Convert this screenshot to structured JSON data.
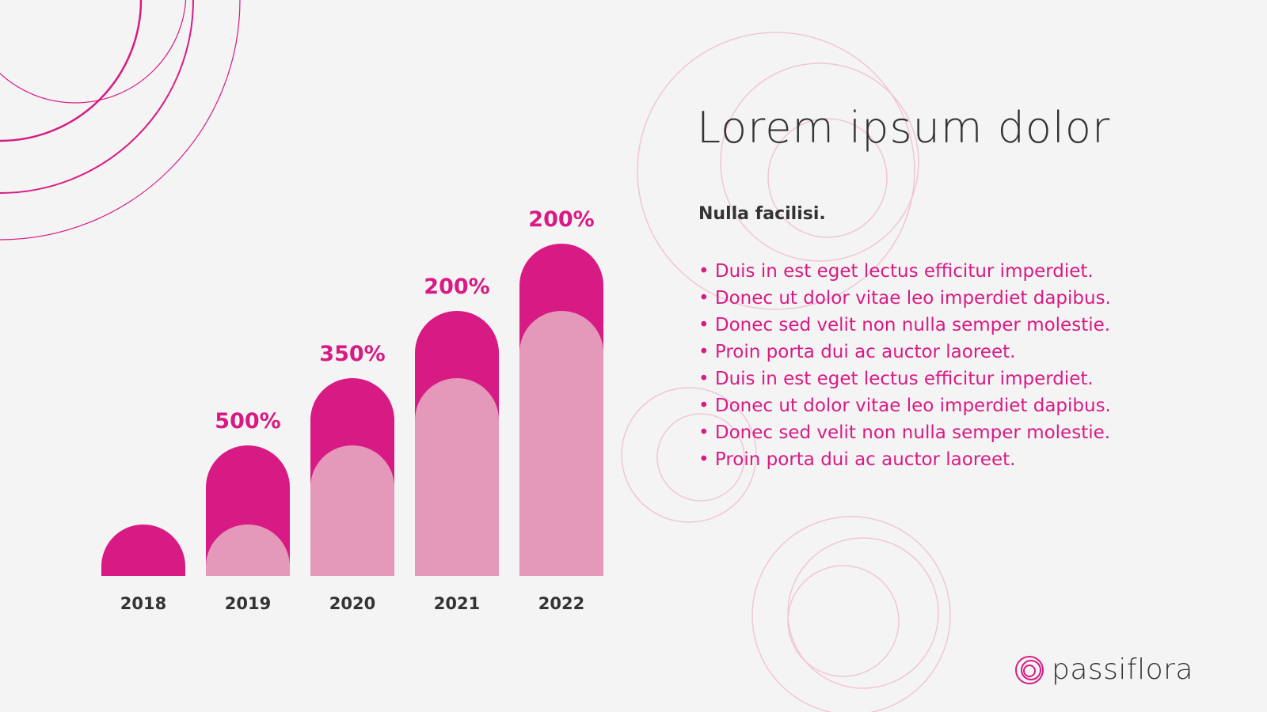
{
  "slide": {
    "title": "Lorem ipsum dolor",
    "subtitle": "Nulla facilisi.",
    "bullets": [
      "• Duis in est eget lectus efficitur imperdiet.",
      "• Donec ut dolor vitae leo imperdiet dapibus.",
      "• Donec sed velit non nulla semper molestie.",
      "• Proin porta dui ac auctor laoreet.",
      "• Duis in est eget lectus efficitur imperdiet.",
      "• Donec ut dolor vitae leo imperdiet dapibus.",
      "• Donec sed velit non nulla semper molestie.",
      "• Proin porta dui ac auctor laoreet."
    ],
    "brand": "passiflora"
  },
  "colors": {
    "accent": "#d81b84",
    "accent_light": "#e499bb",
    "text_dark": "#333333",
    "background": "#f4f4f4"
  },
  "chart_data": {
    "type": "bar",
    "categories": [
      "2018",
      "2019",
      "2020",
      "2021",
      "2022"
    ],
    "values": [
      1,
      2,
      3,
      4,
      5
    ],
    "previous_values": [
      0,
      1,
      2,
      3,
      4
    ],
    "labels": [
      "",
      "500%",
      "350%",
      "200%",
      "200%"
    ],
    "ylim": [
      0,
      5
    ],
    "grid": false,
    "legend": "none"
  }
}
